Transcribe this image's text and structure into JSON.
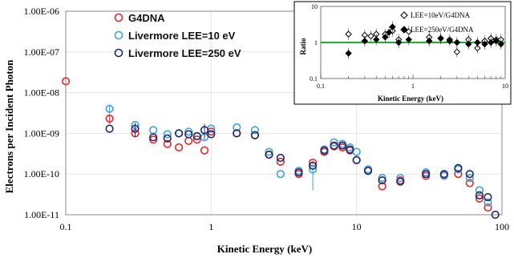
{
  "chart_data": [
    {
      "type": "scatter",
      "xlabel": "Kinetic Energy (keV)",
      "ylabel": "Electrons per Incident Photon",
      "xscale": "log",
      "yscale": "log",
      "xlim": [
        0.1,
        100
      ],
      "ylim": [
        1e-11,
        1e-06
      ],
      "xticks": [
        "0.1",
        "1",
        "10",
        "100"
      ],
      "yticks": [
        "1.00E-11",
        "1.00E-10",
        "1.00E-09",
        "1.00E-08",
        "1.00E-07",
        "1.00E-06"
      ],
      "legend_position": "top-left",
      "series": [
        {
          "name": "G4DNA",
          "color": "#e8262b",
          "marker": "open-circle",
          "points": [
            {
              "x": 0.1,
              "y": 1.9e-08
            },
            {
              "x": 0.2,
              "y": 2.3e-09,
              "err": 6e-10
            },
            {
              "x": 0.3,
              "y": 1e-09
            },
            {
              "x": 0.4,
              "y": 7e-10
            },
            {
              "x": 0.5,
              "y": 5.5e-10
            },
            {
              "x": 0.6,
              "y": 4.5e-10
            },
            {
              "x": 0.7,
              "y": 6.5e-10
            },
            {
              "x": 0.8,
              "y": 7e-10
            },
            {
              "x": 0.9,
              "y": 3.8e-10
            },
            {
              "x": 1.0,
              "y": 1.1e-09
            },
            {
              "x": 1.5,
              "y": 1e-09
            },
            {
              "x": 2.0,
              "y": 9e-10
            },
            {
              "x": 2.5,
              "y": 3e-10
            },
            {
              "x": 3.0,
              "y": 2e-10
            },
            {
              "x": 4.0,
              "y": 1e-10
            },
            {
              "x": 5.0,
              "y": 1.9e-10
            },
            {
              "x": 6.0,
              "y": 3.5e-10
            },
            {
              "x": 7.0,
              "y": 4.8e-10
            },
            {
              "x": 8.0,
              "y": 4.5e-10
            },
            {
              "x": 9.0,
              "y": 3.8e-10
            },
            {
              "x": 10.0,
              "y": 2.2e-10
            },
            {
              "x": 12.0,
              "y": 1.2e-10
            },
            {
              "x": 15.0,
              "y": 5e-11
            },
            {
              "x": 20.0,
              "y": 7e-11
            },
            {
              "x": 30.0,
              "y": 9e-11
            },
            {
              "x": 40.0,
              "y": 9.5e-11
            },
            {
              "x": 50.0,
              "y": 1e-10
            },
            {
              "x": 60.0,
              "y": 6e-11
            },
            {
              "x": 70.0,
              "y": 2.5e-11
            },
            {
              "x": 80.0,
              "y": 1.5e-11
            }
          ]
        },
        {
          "name": "Livermore LEE=10 eV",
          "color": "#3ea2d8",
          "marker": "open-circle",
          "points": [
            {
              "x": 0.2,
              "y": 4e-09,
              "err": 1e-09
            },
            {
              "x": 0.3,
              "y": 1.6e-09
            },
            {
              "x": 0.4,
              "y": 1.2e-09
            },
            {
              "x": 0.5,
              "y": 9.5e-10
            },
            {
              "x": 0.6,
              "y": 1e-09
            },
            {
              "x": 0.7,
              "y": 1.1e-09
            },
            {
              "x": 0.8,
              "y": 8.5e-10
            },
            {
              "x": 0.9,
              "y": 8e-10
            },
            {
              "x": 1.0,
              "y": 1.3e-09
            },
            {
              "x": 1.5,
              "y": 1.4e-09
            },
            {
              "x": 2.0,
              "y": 1.2e-09
            },
            {
              "x": 2.5,
              "y": 3.5e-10
            },
            {
              "x": 3.0,
              "y": 1e-10
            },
            {
              "x": 4.0,
              "y": 1.2e-10
            },
            {
              "x": 5.0,
              "y": 1.3e-10,
              "err": 9e-11
            },
            {
              "x": 6.0,
              "y": 4e-10
            },
            {
              "x": 7.0,
              "y": 6e-10
            },
            {
              "x": 8.0,
              "y": 5.5e-10
            },
            {
              "x": 9.0,
              "y": 4.5e-10
            },
            {
              "x": 10.0,
              "y": 3.5e-10
            },
            {
              "x": 12.0,
              "y": 1.3e-10
            },
            {
              "x": 15.0,
              "y": 8e-11
            },
            {
              "x": 20.0,
              "y": 8e-11
            },
            {
              "x": 30.0,
              "y": 1.1e-10
            },
            {
              "x": 40.0,
              "y": 9e-11
            },
            {
              "x": 50.0,
              "y": 1.3e-10
            },
            {
              "x": 60.0,
              "y": 8e-11
            },
            {
              "x": 70.0,
              "y": 4e-11
            },
            {
              "x": 80.0,
              "y": 2e-11
            }
          ]
        },
        {
          "name": "Livermore LEE=250 eV",
          "color": "#1f2a6b",
          "marker": "open-circle",
          "points": [
            {
              "x": 0.2,
              "y": 1.3e-09
            },
            {
              "x": 0.3,
              "y": 1.3e-09,
              "err": 5e-10
            },
            {
              "x": 0.4,
              "y": 8e-10
            },
            {
              "x": 0.5,
              "y": 7.5e-10
            },
            {
              "x": 0.6,
              "y": 1e-09
            },
            {
              "x": 0.7,
              "y": 9.5e-10
            },
            {
              "x": 0.8,
              "y": 8.5e-10
            },
            {
              "x": 0.9,
              "y": 1.2e-09,
              "err": 5e-10
            },
            {
              "x": 1.0,
              "y": 9.5e-10
            },
            {
              "x": 1.5,
              "y": 1e-09
            },
            {
              "x": 2.0,
              "y": 9e-10
            },
            {
              "x": 2.5,
              "y": 3e-10
            },
            {
              "x": 3.0,
              "y": 2.5e-10
            },
            {
              "x": 4.0,
              "y": 1.1e-10
            },
            {
              "x": 5.0,
              "y": 1.6e-10
            },
            {
              "x": 6.0,
              "y": 3.8e-10
            },
            {
              "x": 7.0,
              "y": 5e-10
            },
            {
              "x": 8.0,
              "y": 5e-10
            },
            {
              "x": 9.0,
              "y": 4e-10
            },
            {
              "x": 10.0,
              "y": 2.2e-10
            },
            {
              "x": 12.0,
              "y": 1.2e-10
            },
            {
              "x": 15.0,
              "y": 7e-11
            },
            {
              "x": 20.0,
              "y": 6.5e-11
            },
            {
              "x": 30.0,
              "y": 1e-10
            },
            {
              "x": 40.0,
              "y": 1e-10
            },
            {
              "x": 50.0,
              "y": 1.4e-10
            },
            {
              "x": 60.0,
              "y": 1e-10
            },
            {
              "x": 70.0,
              "y": 3e-11
            },
            {
              "x": 80.0,
              "y": 2.7e-11
            },
            {
              "x": 90.0,
              "y": 1e-11
            }
          ]
        }
      ]
    },
    {
      "type": "scatter",
      "xlabel": "Kinetic Energy (keV)",
      "ylabel": "Ratio",
      "xscale": "log",
      "yscale": "log",
      "xlim": [
        0.1,
        10
      ],
      "ylim": [
        0.1,
        10
      ],
      "xticks": [
        "0.1",
        "1",
        "10"
      ],
      "yticks": [
        "0.1",
        "1",
        "10"
      ],
      "reference_line": {
        "y": 1,
        "color": "#22aa33"
      },
      "legend_position": "top-right",
      "series": [
        {
          "name": "LEE=10eV/G4DNA",
          "marker": "open-diamond",
          "color": "#000000",
          "points": [
            {
              "x": 0.2,
              "y": 1.7
            },
            {
              "x": 0.3,
              "y": 1.6
            },
            {
              "x": 0.35,
              "y": 1.5
            },
            {
              "x": 0.4,
              "y": 1.7
            },
            {
              "x": 0.5,
              "y": 1.7
            },
            {
              "x": 0.6,
              "y": 2.1
            },
            {
              "x": 0.7,
              "y": 1.2
            },
            {
              "x": 0.9,
              "y": 2.0
            },
            {
              "x": 1.5,
              "y": 1.4
            },
            {
              "x": 2.0,
              "y": 1.3
            },
            {
              "x": 2.5,
              "y": 1.2
            },
            {
              "x": 3.0,
              "y": 0.55
            },
            {
              "x": 4.0,
              "y": 1.2
            },
            {
              "x": 5.0,
              "y": 0.7
            },
            {
              "x": 6.0,
              "y": 1.1
            },
            {
              "x": 7.0,
              "y": 1.3
            },
            {
              "x": 8.0,
              "y": 1.2
            },
            {
              "x": 9.0,
              "y": 1.2
            }
          ]
        },
        {
          "name": "LEE=250eV/G4DNA",
          "marker": "filled-diamond",
          "color": "#000000",
          "points": [
            {
              "x": 0.2,
              "y": 0.5
            },
            {
              "x": 0.3,
              "y": 1.1
            },
            {
              "x": 0.4,
              "y": 1.2
            },
            {
              "x": 0.5,
              "y": 1.4
            },
            {
              "x": 0.55,
              "y": 1.9
            },
            {
              "x": 0.6,
              "y": 2.7
            },
            {
              "x": 0.7,
              "y": 1.0
            },
            {
              "x": 0.9,
              "y": 1.2
            },
            {
              "x": 1.5,
              "y": 1.1
            },
            {
              "x": 2.0,
              "y": 1.3
            },
            {
              "x": 2.5,
              "y": 1.1
            },
            {
              "x": 3.0,
              "y": 1.0
            },
            {
              "x": 4.0,
              "y": 0.9
            },
            {
              "x": 5.0,
              "y": 1.0
            },
            {
              "x": 6.0,
              "y": 0.9
            },
            {
              "x": 7.0,
              "y": 1.0
            },
            {
              "x": 8.0,
              "y": 1.1
            },
            {
              "x": 9.0,
              "y": 0.9
            }
          ]
        }
      ]
    }
  ]
}
